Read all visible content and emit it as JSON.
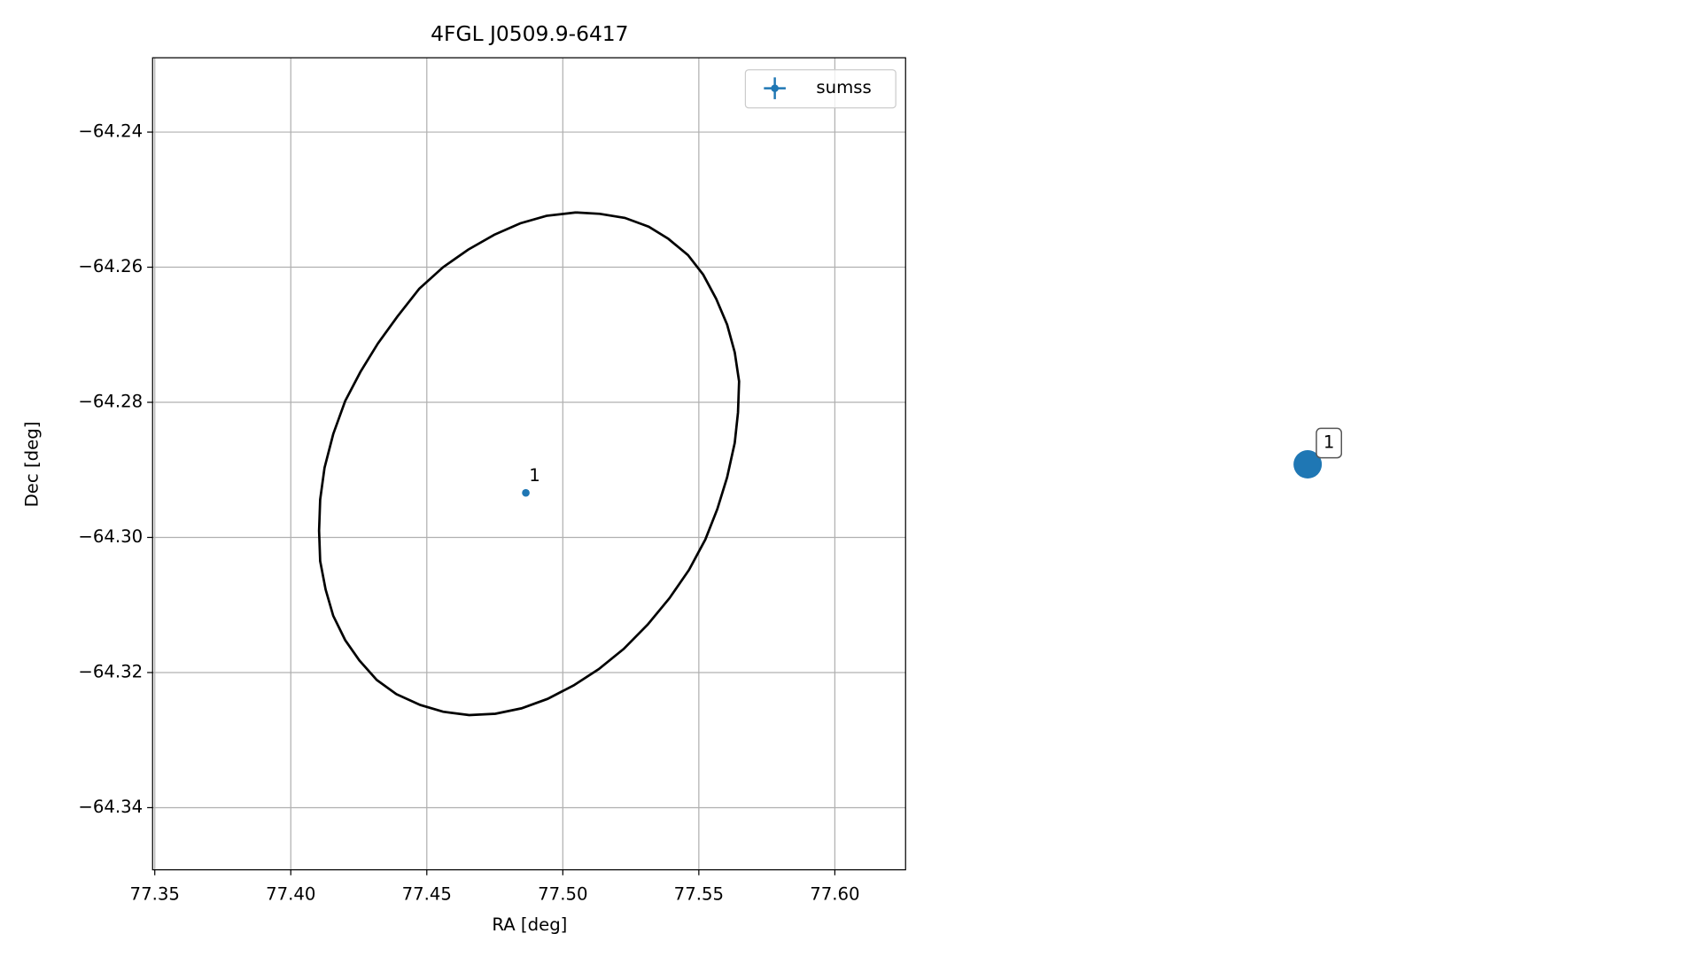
{
  "chart_data": [
    {
      "type": "scatter",
      "title": "4FGL J0509.9-6417",
      "xlabel": "RA [deg]",
      "ylabel": "Dec [deg]",
      "xlim": [
        77.3492,
        77.626
      ],
      "ylim": [
        -64.3492,
        -64.229
      ],
      "xticks": [
        77.35,
        {
          "value": 77.4,
          "label": "77.40"
        },
        77.45,
        {
          "value": 77.5,
          "label": "77.50"
        },
        77.55,
        {
          "value": 77.6,
          "label": "77.60"
        }
      ],
      "yticks": [
        {
          "value": -64.24,
          "label": "−64.24"
        },
        {
          "value": -64.26,
          "label": "−64.26"
        },
        {
          "value": -64.28,
          "label": "−64.28"
        },
        {
          "value": -64.3,
          "label": "−64.30"
        },
        {
          "value": -64.32,
          "label": "−64.32"
        },
        {
          "value": -64.34,
          "label": "−64.34"
        }
      ],
      "grid": true,
      "legend": "upper right",
      "series": [
        {
          "name": "sumss",
          "color": "#1f77b4",
          "x": [
            77.4864
          ],
          "values": [
            -64.2934
          ],
          "labels": [
            "1"
          ]
        }
      ],
      "ellipse": {
        "color": "#000000",
        "x": [
          77.5048,
          77.5136,
          77.5228,
          77.5316,
          77.5388,
          77.546,
          77.5516,
          77.5564,
          77.5604,
          77.5632,
          77.5648,
          77.5644,
          77.5632,
          77.5604,
          77.5568,
          77.5524,
          77.5464,
          77.5392,
          77.5312,
          77.5224,
          77.5132,
          77.504,
          77.4944,
          77.4848,
          77.4752,
          77.4656,
          77.456,
          77.4476,
          77.4388,
          77.4316,
          77.4252,
          77.42,
          77.4156,
          77.4128,
          77.4108,
          77.4104,
          77.4108,
          77.4124,
          77.4156,
          77.42,
          77.4256,
          77.432,
          77.4392,
          77.4472,
          77.456,
          77.4652,
          77.4748,
          77.4844,
          77.494,
          77.5048
        ],
        "y": [
          -64.2519,
          -64.2521,
          -64.2527,
          -64.254,
          -64.2558,
          -64.2582,
          -64.2611,
          -64.2647,
          -64.2685,
          -64.2726,
          -64.2769,
          -64.2815,
          -64.286,
          -64.2911,
          -64.2958,
          -64.3003,
          -64.3048,
          -64.309,
          -64.3129,
          -64.3165,
          -64.3195,
          -64.3219,
          -64.3239,
          -64.3253,
          -64.3261,
          -64.3263,
          -64.3258,
          -64.3248,
          -64.3232,
          -64.3211,
          -64.3182,
          -64.3152,
          -64.3116,
          -64.3077,
          -64.3035,
          -64.299,
          -64.2944,
          -64.2897,
          -64.2847,
          -64.2798,
          -64.2755,
          -64.2713,
          -64.2673,
          -64.2632,
          -64.26,
          -64.2574,
          -64.2552,
          -64.2535,
          -64.2524,
          -64.2519
        ]
      }
    },
    {
      "type": "marker",
      "color": "#1f77b4",
      "labels": [
        "1"
      ]
    }
  ]
}
